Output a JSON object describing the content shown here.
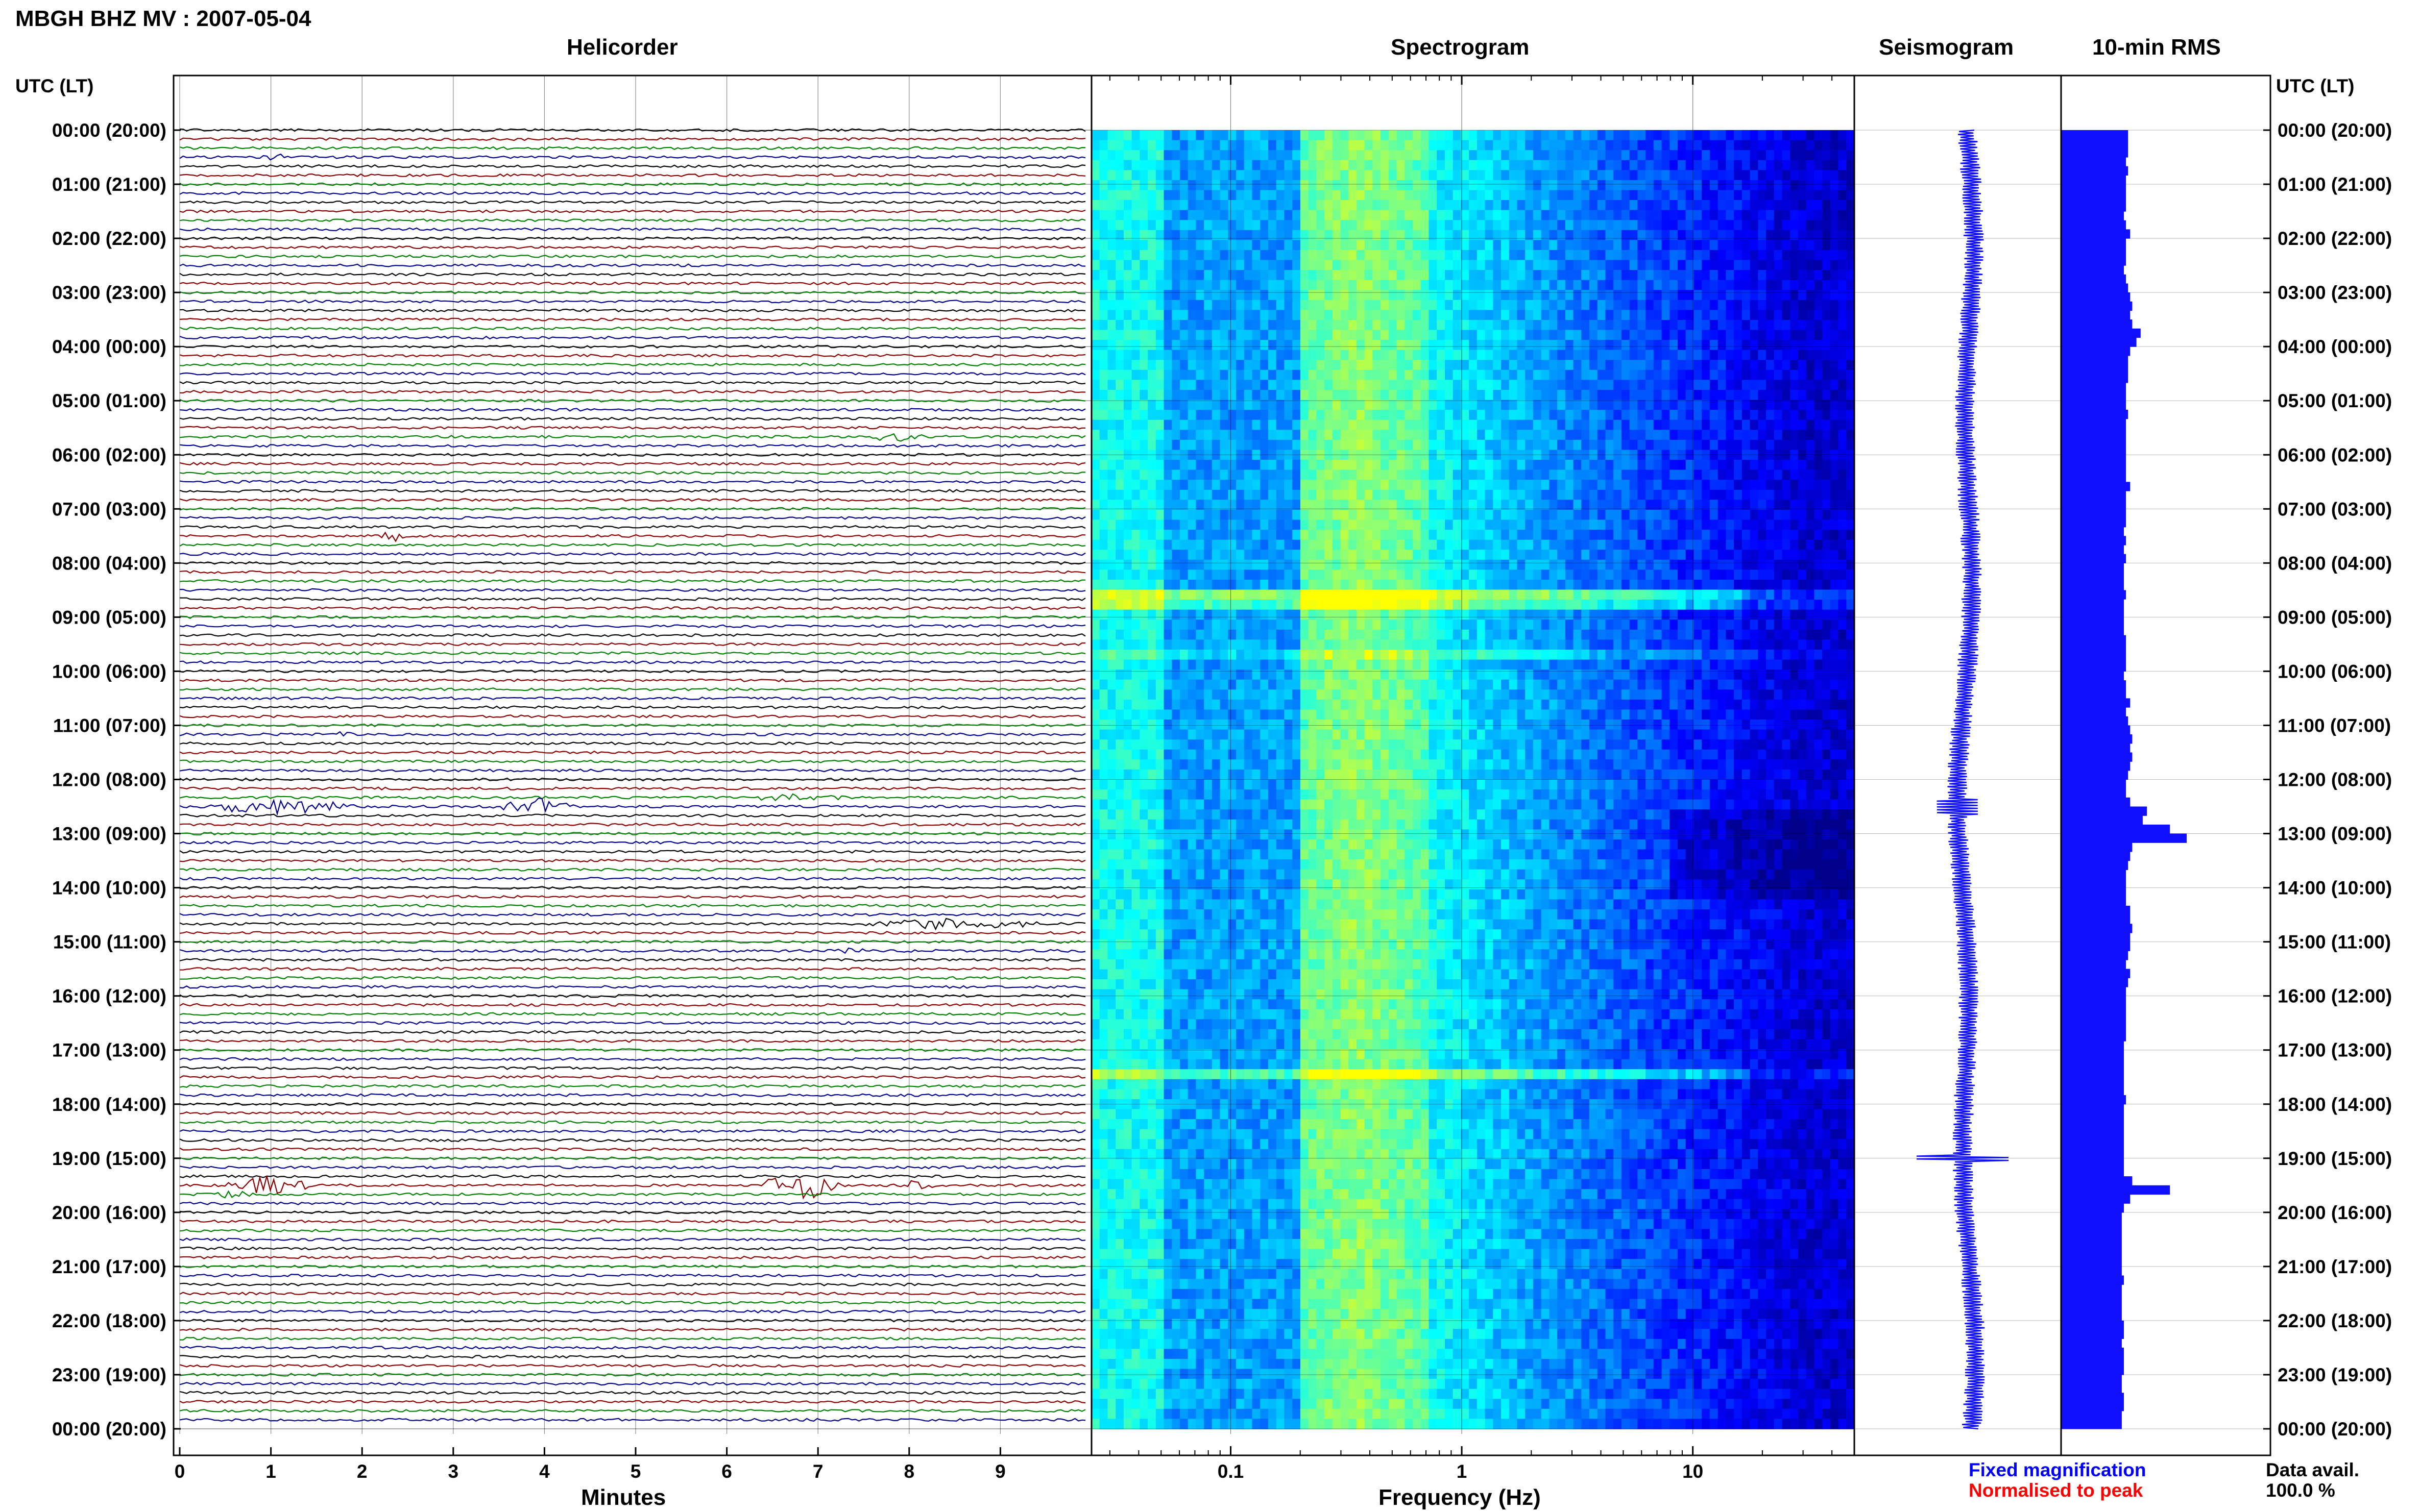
{
  "header": {
    "station_title": "MBGH BHZ MV : 2007-05-04",
    "utc_lt_label_left": "UTC (LT)",
    "utc_lt_label_right": "UTC (LT)"
  },
  "panels": {
    "helicorder_title": "Helicorder",
    "spectrogram_title": "Spectrogram",
    "seismogram_title": "Seismogram",
    "rms_title": "10-min RMS"
  },
  "footer": {
    "minutes_label": "Minutes",
    "frequency_label": "Frequency (Hz)",
    "fixed_magnification": "Fixed magnification",
    "normalised_to_peak": "Normalised to peak",
    "data_avail_label": "Data avail.",
    "data_avail_value": "100.0 %"
  },
  "colors": {
    "fixed_magnification": "#0000ff",
    "normalised_to_peak": "#ff0000",
    "seismogram_trace": "#1010ff",
    "rms_bars": "#1010ff",
    "helicorder_trace_cycle": [
      "#000000",
      "#8b0000",
      "#008000",
      "#00008b"
    ]
  },
  "chart_data": [
    {
      "type": "line",
      "panel": "Helicorder",
      "title": "Helicorder",
      "xlabel": "Minutes",
      "ylabel": "UTC (LT)",
      "x_ticks": [
        "0",
        "1",
        "2",
        "3",
        "4",
        "5",
        "6",
        "7",
        "8",
        "9"
      ],
      "xlim": [
        0,
        10
      ],
      "y_ticks": [
        "00:00 (20:00)",
        "01:00 (21:00)",
        "02:00 (22:00)",
        "03:00 (23:00)",
        "04:00 (00:00)",
        "05:00 (01:00)",
        "06:00 (02:00)",
        "07:00 (03:00)",
        "08:00 (04:00)",
        "09:00 (05:00)",
        "10:00 (06:00)",
        "11:00 (07:00)",
        "12:00 (08:00)",
        "13:00 (09:00)",
        "14:00 (10:00)",
        "15:00 (11:00)",
        "16:00 (12:00)",
        "17:00 (13:00)",
        "18:00 (14:00)",
        "19:00 (15:00)",
        "20:00 (16:00)",
        "21:00 (17:00)",
        "22:00 (18:00)",
        "23:00 (19:00)",
        "00:00 (20:00)"
      ],
      "minutes_per_line": 10,
      "grid": true
    },
    {
      "type": "heatmap",
      "panel": "Spectrogram",
      "title": "Spectrogram",
      "xlabel": "Frequency (Hz)",
      "x_scale": "log",
      "xlim": [
        0.025,
        50
      ],
      "x_tick_labels": [
        "0.1",
        "1",
        "10"
      ],
      "colormap": [
        "#00008b",
        "#0000ff",
        "#0080ff",
        "#00ffff",
        "#80ff80",
        "#ffff00"
      ],
      "grid": true
    },
    {
      "type": "line",
      "panel": "Seismogram",
      "title": "Seismogram",
      "trace_color": "#1010ff"
    },
    {
      "type": "bar",
      "panel": "10-min RMS",
      "title": "10-min RMS",
      "orientation": "horizontal",
      "bars_per_hour": 6,
      "relative_values": [
        0.32,
        0.32,
        0.32,
        0.31,
        0.32,
        0.31,
        0.31,
        0.31,
        0.31,
        0.3,
        0.31,
        0.33,
        0.31,
        0.31,
        0.31,
        0.3,
        0.31,
        0.32,
        0.33,
        0.34,
        0.33,
        0.34,
        0.38,
        0.36,
        0.33,
        0.32,
        0.32,
        0.32,
        0.31,
        0.31,
        0.31,
        0.32,
        0.31,
        0.31,
        0.31,
        0.31,
        0.31,
        0.31,
        0.31,
        0.33,
        0.31,
        0.31,
        0.31,
        0.31,
        0.3,
        0.31,
        0.3,
        0.31,
        0.3,
        0.3,
        0.3,
        0.31,
        0.3,
        0.3,
        0.3,
        0.3,
        0.31,
        0.31,
        0.31,
        0.31,
        0.3,
        0.31,
        0.31,
        0.33,
        0.31,
        0.32,
        0.33,
        0.34,
        0.33,
        0.34,
        0.33,
        0.32,
        0.31,
        0.31,
        0.33,
        0.41,
        0.39,
        0.52,
        0.6,
        0.34,
        0.33,
        0.32,
        0.31,
        0.31,
        0.31,
        0.31,
        0.33,
        0.33,
        0.34,
        0.33,
        0.33,
        0.32,
        0.31,
        0.33,
        0.32,
        0.31,
        0.31,
        0.31,
        0.31,
        0.31,
        0.31,
        0.3,
        0.3,
        0.3,
        0.3,
        0.3,
        0.3,
        0.31,
        0.3,
        0.3,
        0.3,
        0.3,
        0.3,
        0.3,
        0.3,
        0.3,
        0.34,
        0.52,
        0.33,
        0.3,
        0.29,
        0.29,
        0.29,
        0.29,
        0.29,
        0.29,
        0.29,
        0.3,
        0.29,
        0.29,
        0.29,
        0.29,
        0.3,
        0.3,
        0.29,
        0.3,
        0.3,
        0.3,
        0.29,
        0.29,
        0.3,
        0.3,
        0.29,
        0.29
      ]
    }
  ]
}
